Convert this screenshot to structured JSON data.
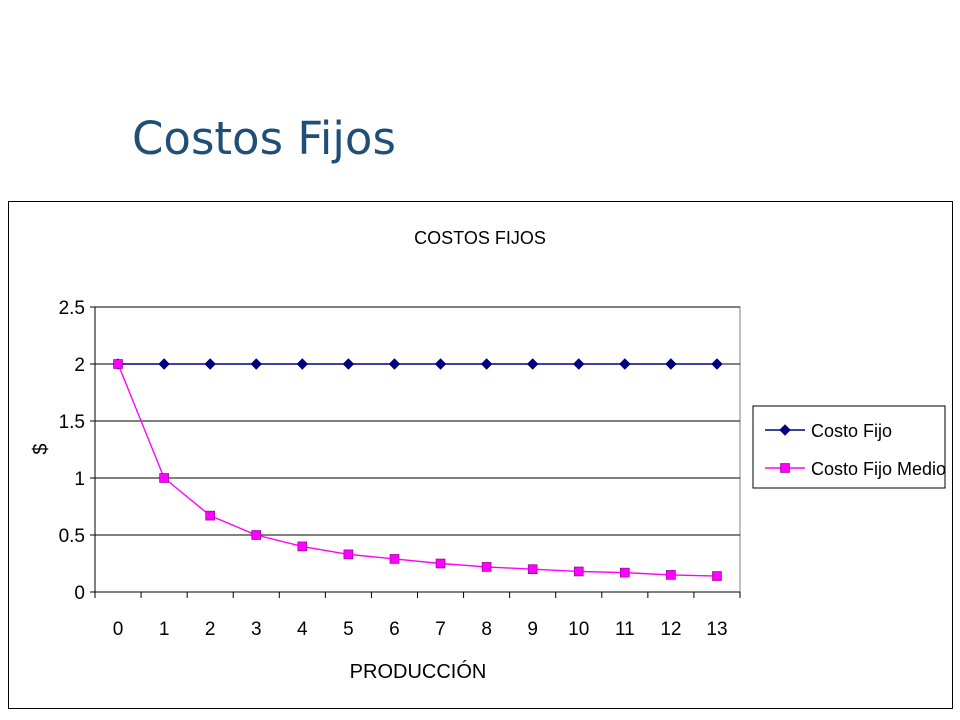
{
  "slide": {
    "title": "Costos Fijos"
  },
  "chart_data": {
    "type": "line",
    "title": "COSTOS FIJOS",
    "xlabel": "PRODUCCIÓN",
    "ylabel": "$",
    "categories": [
      "0",
      "1",
      "2",
      "3",
      "4",
      "5",
      "6",
      "7",
      "8",
      "9",
      "10",
      "11",
      "12",
      "13"
    ],
    "ylim": [
      0,
      2.5
    ],
    "yticks": [
      "0",
      "0.5",
      "1",
      "1.5",
      "2",
      "2.5"
    ],
    "grid": true,
    "legend_position": "right",
    "series": [
      {
        "name": "Costo Fijo",
        "color": "#000080",
        "marker": "diamond",
        "values": [
          2,
          2,
          2,
          2,
          2,
          2,
          2,
          2,
          2,
          2,
          2,
          2,
          2,
          2
        ]
      },
      {
        "name": "Costo Fijo Medio",
        "color": "#ff00ff",
        "marker": "square",
        "values": [
          2,
          1,
          0.67,
          0.5,
          0.4,
          0.33,
          0.29,
          0.25,
          0.22,
          0.2,
          0.18,
          0.17,
          0.15,
          0.14
        ]
      }
    ]
  }
}
